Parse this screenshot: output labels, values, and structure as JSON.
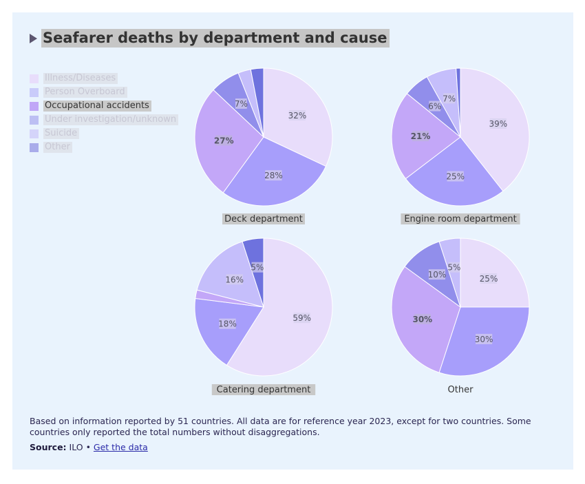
{
  "title": "Seafarer deaths by department and cause",
  "legend": [
    {
      "label": "Illness/Diseases",
      "color": "#e8ddfb",
      "state": "dim"
    },
    {
      "label": "Person Overboard",
      "color": "#c9cbfa",
      "state": "dim"
    },
    {
      "label": "Occupational accidents",
      "color": "#c0a6f7",
      "state": "active"
    },
    {
      "label": "Under investigation/unknown",
      "color": "#bcbff3",
      "state": "dim"
    },
    {
      "label": "Suicide",
      "color": "#d4d4fa",
      "state": "dim"
    },
    {
      "label": "Other",
      "color": "#a9acea",
      "state": "dim"
    }
  ],
  "chart_data": [
    {
      "type": "pie",
      "title": "Deck department",
      "slices": [
        {
          "label": "Illness/Diseases",
          "value": 32,
          "color": "#e8ddfb",
          "text": "32%"
        },
        {
          "label": "Person Overboard",
          "value": 28,
          "color": "#a79efb",
          "text": "28%"
        },
        {
          "label": "Occupational accidents",
          "value": 27,
          "color": "#c3a7f8",
          "text": "27%",
          "emphasis": true
        },
        {
          "label": "Under investigation/unknown",
          "value": 7,
          "color": "#918eeb",
          "text": "7%"
        },
        {
          "label": "Suicide",
          "value": 3,
          "color": "#c5befb",
          "text": ""
        },
        {
          "label": "Other",
          "value": 3,
          "color": "#6e72de",
          "text": ""
        }
      ]
    },
    {
      "type": "pie",
      "title": "Engine room department",
      "slices": [
        {
          "label": "Illness/Diseases",
          "value": 39,
          "color": "#e8ddfb",
          "text": "39%"
        },
        {
          "label": "Person Overboard",
          "value": 25,
          "color": "#a79efb",
          "text": "25%"
        },
        {
          "label": "Occupational accidents",
          "value": 21,
          "color": "#c3a7f8",
          "text": "21%",
          "emphasis": true
        },
        {
          "label": "Under investigation/unknown",
          "value": 6,
          "color": "#918eeb",
          "text": "6%"
        },
        {
          "label": "Suicide",
          "value": 7,
          "color": "#c5befb",
          "text": "7%"
        },
        {
          "label": "Other",
          "value": 1,
          "color": "#6e72de",
          "text": ""
        }
      ]
    },
    {
      "type": "pie",
      "title": "Catering department",
      "slices": [
        {
          "label": "Illness/Diseases",
          "value": 59,
          "color": "#e8ddfb",
          "text": "59%"
        },
        {
          "label": "Person Overboard",
          "value": 18,
          "color": "#a79efb",
          "text": "18%"
        },
        {
          "label": "Occupational accidents",
          "value": 2,
          "color": "#c3a7f8",
          "text": ""
        },
        {
          "label": "Under investigation/unknown",
          "value": 16,
          "color": "#c5befb",
          "text": "16%"
        },
        {
          "label": "Other",
          "value": 5,
          "color": "#6e72de",
          "text": "5%"
        }
      ]
    },
    {
      "type": "pie",
      "title": "Other",
      "slices": [
        {
          "label": "Illness/Diseases",
          "value": 25,
          "color": "#e8ddfb",
          "text": "25%"
        },
        {
          "label": "Person Overboard",
          "value": 30,
          "color": "#a79efb",
          "text": "30%"
        },
        {
          "label": "Occupational accidents",
          "value": 30,
          "color": "#c3a7f8",
          "text": "30%",
          "emphasis": true
        },
        {
          "label": "Under investigation/unknown",
          "value": 10,
          "color": "#918eeb",
          "text": "10%"
        },
        {
          "label": "Suicide",
          "value": 5,
          "color": "#c5befb",
          "text": "5%"
        }
      ]
    }
  ],
  "footnote": "Based on information reported by 51 countries. All data are for reference year 2023, except for two countries. Some countries only reported the total numbers without disaggregations.",
  "source": {
    "label": "Source:",
    "text": "ILO",
    "separator": "•",
    "link_text": "Get the data"
  }
}
